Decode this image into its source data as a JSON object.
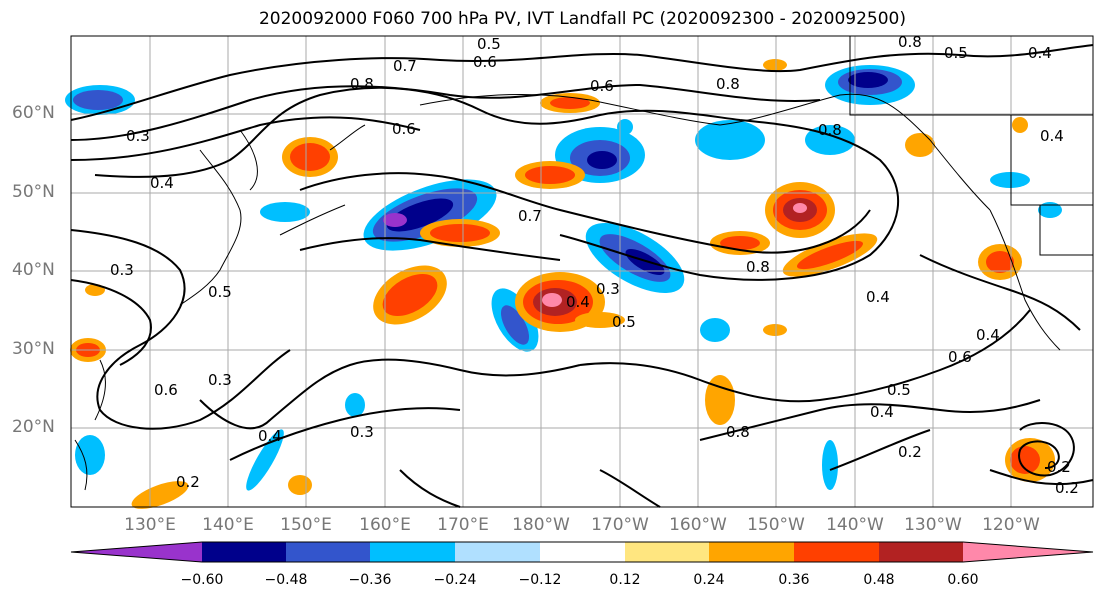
{
  "title": "2020092000 F060 700 hPa PV, IVT Landfall PC (2020092300 - 2020092500)",
  "lat_labels": [
    "60°N",
    "50°N",
    "40°N",
    "30°N",
    "20°N"
  ],
  "lon_labels": [
    "130°E",
    "140°E",
    "150°E",
    "160°E",
    "170°E",
    "180°W",
    "170°W",
    "160°W",
    "150°W",
    "140°W",
    "130°W",
    "120°W"
  ],
  "colorbar": {
    "ticks": [
      "−0.60",
      "−0.48",
      "−0.36",
      "−0.24",
      "−0.12",
      "0.12",
      "0.24",
      "0.36",
      "0.48",
      "0.60"
    ],
    "colors": [
      "#9933cc",
      "#00008b",
      "#3355cc",
      "#00bfff",
      "#b0e0ff",
      "#ffffff",
      "#ffe680",
      "#ffa500",
      "#ff4000",
      "#b22222",
      "#ff88aa"
    ]
  },
  "contour_labels": [
    "0.8",
    "0.5",
    "0.4",
    "0.7",
    "0.6",
    "0.8",
    "0.3",
    "0.4",
    "0.6",
    "0.8",
    "0.8",
    "0.7",
    "0.8",
    "0.4",
    "0.6",
    "0.3",
    "0.4",
    "0.3",
    "0.5",
    "0.5",
    "0.4",
    "0.6",
    "0.4",
    "0.5",
    "0.3",
    "0.6",
    "0.3",
    "0.4",
    "0.2",
    "0.8",
    "0.2",
    "0.2",
    "0.4",
    "0.2",
    "0.5"
  ]
}
